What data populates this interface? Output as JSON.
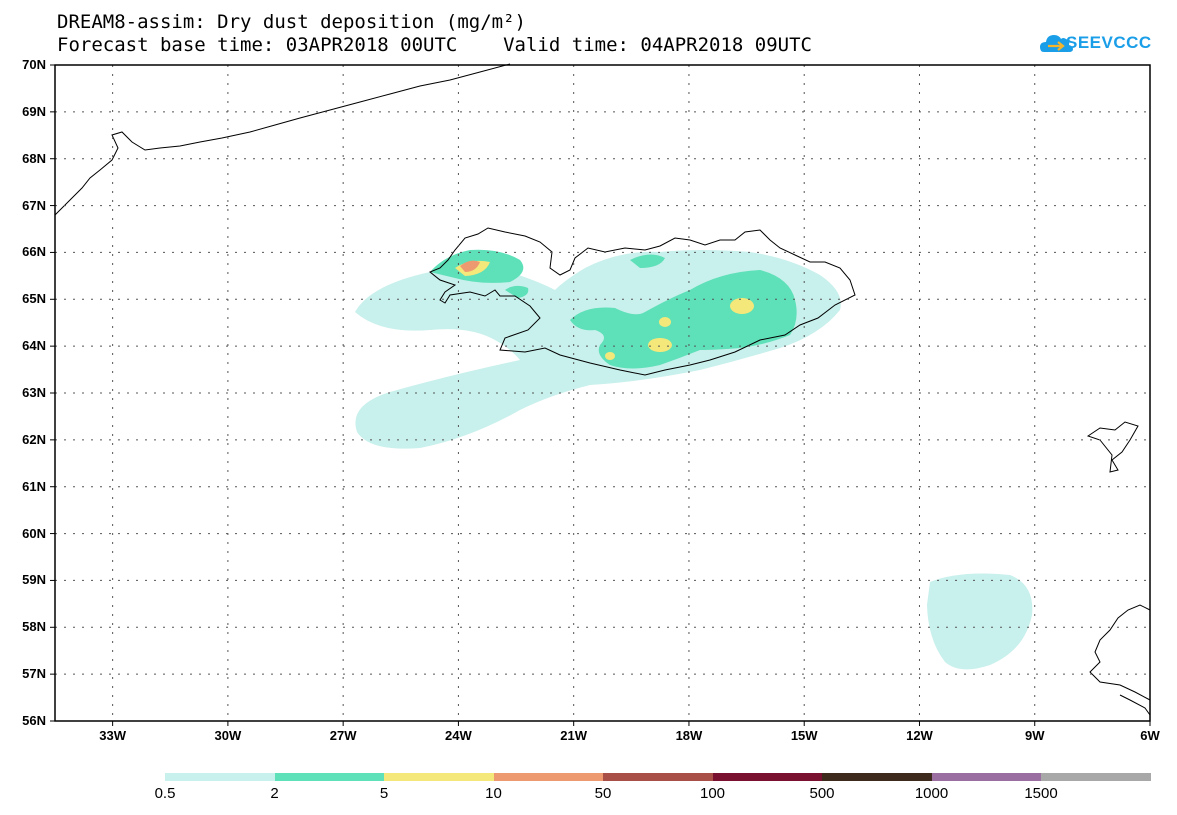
{
  "header": {
    "title_line1": "DREAM8-assim: Dry dust deposition (mg/m²)",
    "title_line2": "Forecast base time: 03APR2018 00UTC    Valid time: 04APR2018 09UTC",
    "logo_text": "SEEVCCC"
  },
  "map": {
    "projection": "lat-lon",
    "lon_range": [
      -34.5,
      -6
    ],
    "lat_range": [
      56,
      70
    ],
    "lat_labels": [
      "56N",
      "57N",
      "58N",
      "59N",
      "60N",
      "61N",
      "62N",
      "63N",
      "64N",
      "65N",
      "66N",
      "67N",
      "68N",
      "69N",
      "70N"
    ],
    "lon_labels": [
      "33W",
      "30W",
      "27W",
      "24W",
      "21W",
      "18W",
      "15W",
      "12W",
      "9W",
      "6W"
    ],
    "grid": "dotted"
  },
  "legend": {
    "labels": [
      "0.5",
      "2",
      "5",
      "10",
      "50",
      "100",
      "500",
      "1000",
      "1500"
    ],
    "colors": [
      "#c8f0ec",
      "#5ee0b8",
      "#f5e87a",
      "#ee9a70",
      "#a85048",
      "#7a1030",
      "#3d2a1c",
      "#9a6ea0",
      "#a8a8a8"
    ]
  },
  "colors": {
    "level_0_5": "#c8f0ec",
    "level_2": "#5ee0b8",
    "level_5": "#f5e87a",
    "level_10": "#ee9a70"
  }
}
